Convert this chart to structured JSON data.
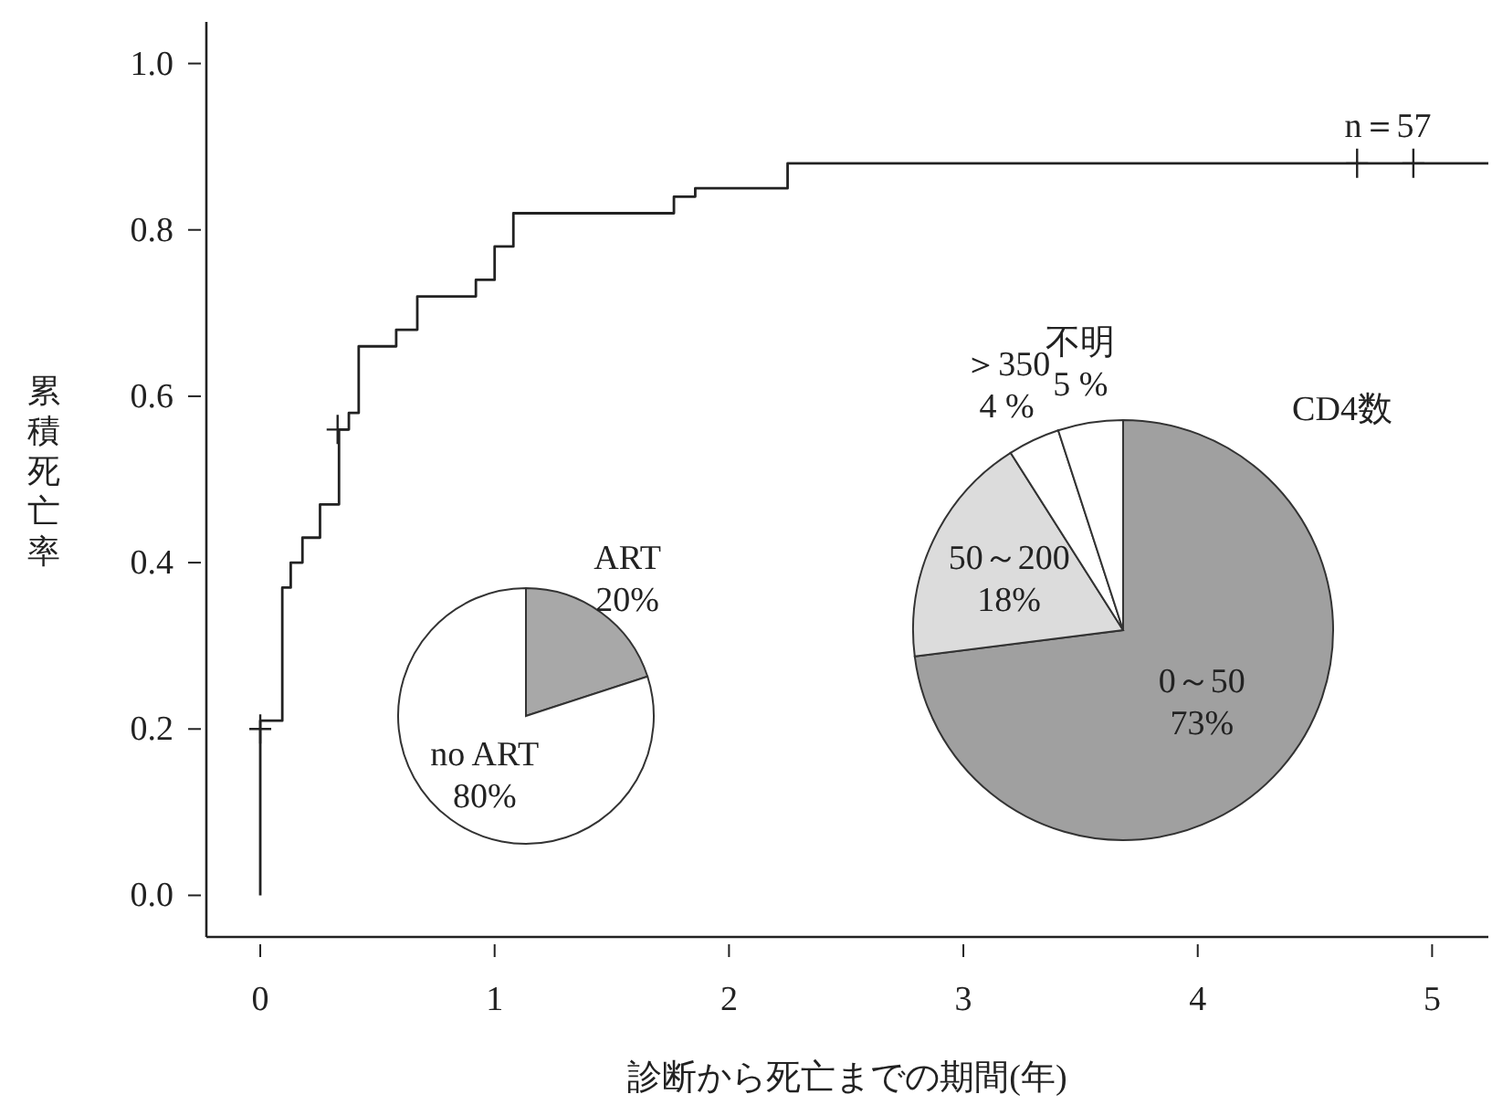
{
  "chart_data": [
    {
      "type": "step",
      "xlabel": "診断から死亡までの期間(年)",
      "ylabel": "累積死亡率",
      "annotations": [
        "n＝57"
      ],
      "xlim": [
        -0.23,
        5.24
      ],
      "ylim": [
        -0.05,
        1.05
      ],
      "xticks": [
        0,
        1,
        2,
        3,
        4,
        5
      ],
      "yticks": [
        {
          "value": 0,
          "label": "0.0"
        },
        {
          "value": 0.2,
          "label": "0.2"
        },
        {
          "value": 0.4,
          "label": "0.4"
        },
        {
          "value": 0.6,
          "label": "0.6"
        },
        {
          "value": 0.8,
          "label": "0.8"
        },
        {
          "value": 1,
          "label": "1.0"
        }
      ],
      "series": [
        {
          "type": "step",
          "color": "#222222",
          "x": [
            0,
            0,
            0.094,
            0.13,
            0.18,
            0.255,
            0.336,
            0.378,
            0.42,
            0.58,
            0.67,
            0.92,
            1.0,
            1.08,
            1.765,
            1.856,
            2.25,
            5.24
          ],
          "values": [
            0,
            0.21,
            0.37,
            0.4,
            0.43,
            0.47,
            0.56,
            0.58,
            0.66,
            0.68,
            0.72,
            0.74,
            0.78,
            0.82,
            0.84,
            0.85,
            0.88,
            0.88
          ]
        },
        {
          "type": "scatter",
          "marker": "cross",
          "color": "#222222",
          "x": [
            0,
            0.33,
            4.68,
            4.92
          ],
          "values": [
            0.2,
            0.56,
            0.88,
            0.88
          ]
        }
      ]
    },
    {
      "type": "pie",
      "categories": [
        "ART",
        "no ART"
      ],
      "values": [
        20,
        80
      ],
      "colors": [
        "#a8a8a8",
        "#ffffff"
      ],
      "value_labels": [
        "20%",
        "80%"
      ]
    },
    {
      "type": "pie",
      "title": "CD4数",
      "categories": [
        "0～50",
        "50～200",
        "＞350",
        "不明"
      ],
      "values": [
        73,
        18,
        4,
        5
      ],
      "colors": [
        "#a0a0a0",
        "#dcdcdc",
        "#ffffff",
        "#ffffff"
      ],
      "value_labels": [
        "73%",
        "18%",
        "4 %",
        "5 %"
      ]
    }
  ]
}
